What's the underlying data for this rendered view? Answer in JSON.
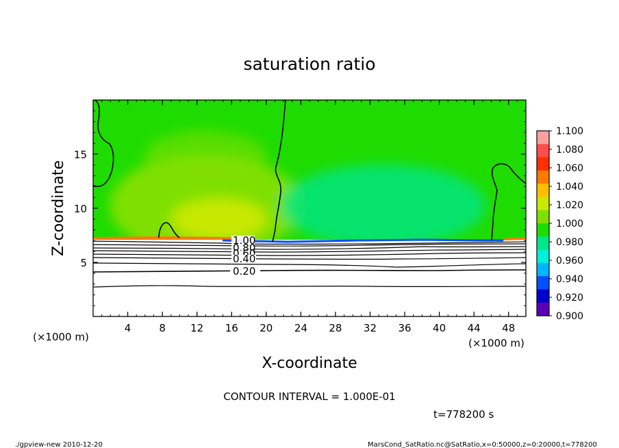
{
  "chart_data": {
    "type": "heatmap",
    "title": "saturation ratio",
    "xlabel": "X-coordinate",
    "ylabel": "Z-coordinate",
    "x_unit": "(×1000 m)",
    "y_unit": "(×1000 m)",
    "xlim": [
      0,
      50
    ],
    "ylim": [
      0,
      20
    ],
    "x_ticks": [
      4,
      8,
      12,
      16,
      20,
      24,
      28,
      32,
      36,
      40,
      44,
      48
    ],
    "y_ticks": [
      5,
      10,
      15
    ],
    "contour_interval_text": "CONTOUR INTERVAL = 1.000E-01",
    "time_text": "t=778200 s",
    "contour_labels": [
      "1.00",
      "0.80",
      "0.60",
      "0.40",
      "0.20"
    ],
    "colorbar": {
      "levels": [
        "1.100",
        "1.080",
        "1.060",
        "1.040",
        "1.020",
        "1.000",
        "0.980",
        "0.960",
        "0.940",
        "0.920",
        "0.900"
      ],
      "colors": [
        "#ff9fa0",
        "#ff4d4d",
        "#ff3000",
        "#ff7a00",
        "#ffc000",
        "#c8e800",
        "#7fe000",
        "#1edc00",
        "#00e68a",
        "#00f0d8",
        "#00b4ff",
        "#0050ff",
        "#0000d0",
        "#5a00b4"
      ]
    },
    "field_colors": {
      "upper_air": "#1edc00",
      "light_band": "#7fe000",
      "supersat": "#c8e800",
      "boundary_max": "#ff7a00",
      "subsat_patch": "#00e68a",
      "lower_layer": "#ffffff",
      "boundary_min": "#0050ff"
    },
    "footer_left": "./gpview-new  2010-12-20",
    "footer_right": "MarsCond_SatRatio.nc@SatRatio,x=0:50000,z=0:20000,t=778200"
  }
}
